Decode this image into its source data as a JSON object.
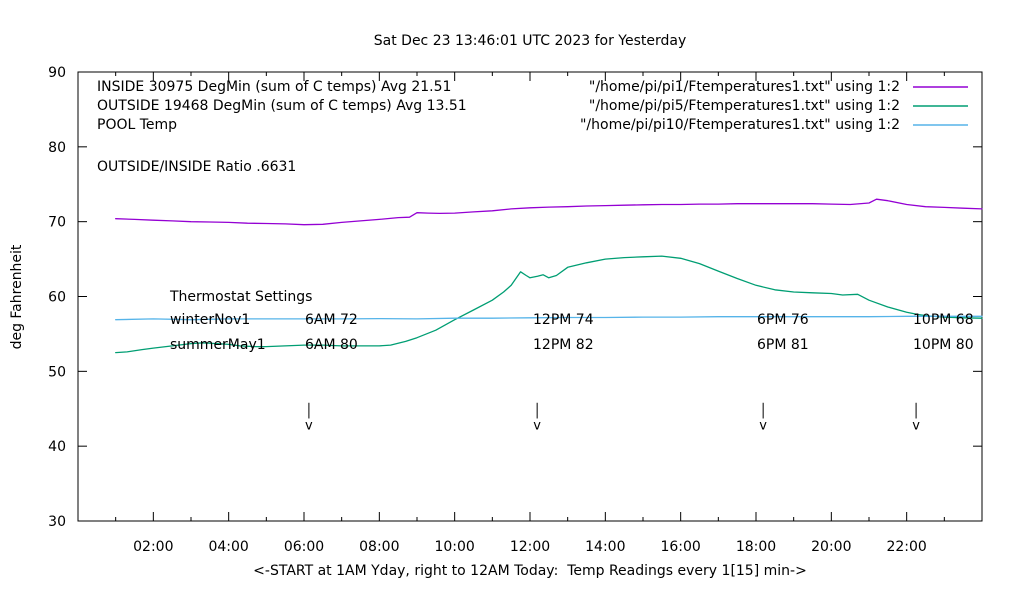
{
  "title": "Sat Dec 23 13:46:01 UTC 2023 for Yesterday",
  "y_axis": {
    "label": "deg Fahrenheit",
    "ticks": [
      30,
      40,
      50,
      60,
      70,
      80,
      90
    ]
  },
  "x_axis": {
    "label": "<-START at 1AM Yday, right to 12AM Today:  Temp Readings every 1[15] min->",
    "ticks": [
      "02:00",
      "04:00",
      "06:00",
      "08:00",
      "10:00",
      "12:00",
      "14:00",
      "16:00",
      "18:00",
      "20:00",
      "22:00"
    ]
  },
  "legend": {
    "series": [
      {
        "label": "INSIDE 30975 DegMin (sum of C temps) Avg 21.51",
        "file": "\"/home/pi/pi1/Ftemperatures1.txt\" using 1:2",
        "color": "#9400d3"
      },
      {
        "label": "OUTSIDE 19468 DegMin (sum of C temps) Avg 13.51",
        "file": "\"/home/pi/pi5/Ftemperatures1.txt\" using 1:2",
        "color": "#009e73"
      },
      {
        "label": "POOL Temp",
        "file": "\"/home/pi/pi10/Ftemperatures1.txt\" using 1:2",
        "color": "#56b4e9"
      }
    ],
    "ratio_text": "OUTSIDE/INSIDE Ratio .6631"
  },
  "thermostat": {
    "heading": "Thermostat Settings",
    "rows": [
      {
        "name": "winterNov1",
        "settings": [
          "6AM 72",
          "12PM 74",
          "6PM 76",
          "10PM 68"
        ]
      },
      {
        "name": "summerMay1",
        "settings": [
          "6AM 80",
          "12PM 82",
          "6PM 81",
          "10PM 80"
        ]
      }
    ]
  },
  "chart_data": {
    "type": "line",
    "title": "Sat Dec 23 13:46:01 UTC 2023 for Yesterday",
    "xlabel": "<-START at 1AM Yday, right to 12AM Today:  Temp Readings every 1[15] min->",
    "ylabel": "deg Fahrenheit",
    "x_unit": "hour of day (1 = 1AM yesterday, 24 = 12AM today)",
    "x_range": [
      0,
      24
    ],
    "y_range": [
      30,
      90
    ],
    "grid": false,
    "legend_position": "top-inside",
    "event_marker_glyph": "v",
    "event_markers_hours": [
      6.13,
      12.19,
      18.19,
      22.25
    ],
    "series": [
      {
        "name": "INSIDE",
        "color": "#9400d3",
        "points": [
          [
            1,
            70.4
          ],
          [
            1.5,
            70.3
          ],
          [
            2,
            70.2
          ],
          [
            2.5,
            70.1
          ],
          [
            3,
            70.0
          ],
          [
            3.5,
            69.95
          ],
          [
            4,
            69.9
          ],
          [
            4.5,
            69.8
          ],
          [
            5,
            69.75
          ],
          [
            5.5,
            69.7
          ],
          [
            6,
            69.6
          ],
          [
            6.5,
            69.65
          ],
          [
            7,
            69.9
          ],
          [
            7.5,
            70.1
          ],
          [
            8,
            70.3
          ],
          [
            8.5,
            70.55
          ],
          [
            8.8,
            70.6
          ],
          [
            9,
            71.2
          ],
          [
            9.3,
            71.15
          ],
          [
            9.6,
            71.1
          ],
          [
            10,
            71.15
          ],
          [
            10.5,
            71.3
          ],
          [
            11,
            71.45
          ],
          [
            11.5,
            71.7
          ],
          [
            12,
            71.85
          ],
          [
            12.5,
            71.95
          ],
          [
            13,
            72.0
          ],
          [
            13.5,
            72.1
          ],
          [
            14,
            72.15
          ],
          [
            14.5,
            72.2
          ],
          [
            15,
            72.25
          ],
          [
            15.5,
            72.3
          ],
          [
            16,
            72.3
          ],
          [
            16.5,
            72.35
          ],
          [
            17,
            72.35
          ],
          [
            17.5,
            72.4
          ],
          [
            18,
            72.4
          ],
          [
            18.5,
            72.4
          ],
          [
            19,
            72.4
          ],
          [
            19.5,
            72.4
          ],
          [
            20,
            72.35
          ],
          [
            20.5,
            72.3
          ],
          [
            21,
            72.5
          ],
          [
            21.2,
            73.0
          ],
          [
            21.5,
            72.8
          ],
          [
            22,
            72.3
          ],
          [
            22.5,
            72.0
          ],
          [
            23,
            71.9
          ],
          [
            23.5,
            71.8
          ],
          [
            24,
            71.7
          ]
        ]
      },
      {
        "name": "OUTSIDE",
        "color": "#009e73",
        "points": [
          [
            1,
            52.5
          ],
          [
            1.3,
            52.6
          ],
          [
            1.7,
            52.9
          ],
          [
            2,
            53.1
          ],
          [
            2.5,
            53.4
          ],
          [
            3,
            53.7
          ],
          [
            3.3,
            53.8
          ],
          [
            3.7,
            53.7
          ],
          [
            4,
            53.6
          ],
          [
            4.3,
            53.4
          ],
          [
            4.7,
            53.3
          ],
          [
            5,
            53.3
          ],
          [
            5.5,
            53.4
          ],
          [
            6,
            53.5
          ],
          [
            6.5,
            53.5
          ],
          [
            7,
            53.4
          ],
          [
            7.5,
            53.4
          ],
          [
            8,
            53.4
          ],
          [
            8.3,
            53.5
          ],
          [
            8.7,
            54.0
          ],
          [
            9,
            54.5
          ],
          [
            9.5,
            55.5
          ],
          [
            10,
            56.9
          ],
          [
            10.5,
            58.2
          ],
          [
            11,
            59.5
          ],
          [
            11.3,
            60.6
          ],
          [
            11.5,
            61.5
          ],
          [
            11.75,
            63.3
          ],
          [
            11.9,
            62.8
          ],
          [
            12,
            62.5
          ],
          [
            12.2,
            62.7
          ],
          [
            12.35,
            62.9
          ],
          [
            12.5,
            62.5
          ],
          [
            12.7,
            62.8
          ],
          [
            13,
            63.9
          ],
          [
            13.5,
            64.5
          ],
          [
            14,
            65.0
          ],
          [
            14.5,
            65.2
          ],
          [
            15,
            65.3
          ],
          [
            15.5,
            65.4
          ],
          [
            16,
            65.1
          ],
          [
            16.5,
            64.4
          ],
          [
            17,
            63.4
          ],
          [
            17.5,
            62.4
          ],
          [
            18,
            61.5
          ],
          [
            18.5,
            60.9
          ],
          [
            19,
            60.6
          ],
          [
            19.5,
            60.5
          ],
          [
            20,
            60.4
          ],
          [
            20.3,
            60.2
          ],
          [
            20.7,
            60.3
          ],
          [
            21,
            59.5
          ],
          [
            21.5,
            58.6
          ],
          [
            22,
            57.9
          ],
          [
            22.3,
            57.6
          ],
          [
            22.6,
            57.4
          ],
          [
            23,
            57.25
          ],
          [
            23.5,
            57.15
          ],
          [
            24,
            57.1
          ]
        ]
      },
      {
        "name": "POOL",
        "color": "#56b4e9",
        "points": [
          [
            1,
            56.9
          ],
          [
            2,
            57.0
          ],
          [
            3,
            56.9
          ],
          [
            4,
            57.0
          ],
          [
            5,
            57.0
          ],
          [
            6,
            57.0
          ],
          [
            7,
            57.0
          ],
          [
            8,
            57.05
          ],
          [
            9,
            57.0
          ],
          [
            10,
            57.1
          ],
          [
            11,
            57.1
          ],
          [
            12,
            57.15
          ],
          [
            13,
            57.2
          ],
          [
            14,
            57.2
          ],
          [
            15,
            57.25
          ],
          [
            16,
            57.25
          ],
          [
            17,
            57.3
          ],
          [
            18,
            57.3
          ],
          [
            19,
            57.3
          ],
          [
            20,
            57.3
          ],
          [
            21,
            57.3
          ],
          [
            22,
            57.35
          ],
          [
            23,
            57.35
          ],
          [
            24,
            57.35
          ]
        ]
      }
    ]
  }
}
